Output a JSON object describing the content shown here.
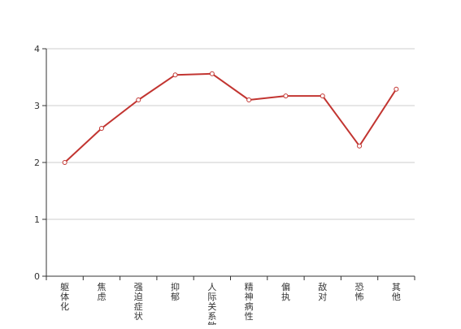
{
  "chart_data": {
    "type": "line",
    "title": "",
    "xlabel": "",
    "ylabel": "",
    "categories": [
      "躯体化",
      "焦虑",
      "强迫症状",
      "抑郁",
      "人际关系敏感",
      "精神病性",
      "偏执",
      "敌对",
      "恐怖",
      "其他"
    ],
    "series": [
      {
        "values": [
          2.0,
          2.6,
          3.1,
          3.54,
          3.56,
          3.1,
          3.17,
          3.17,
          2.29,
          3.29
        ]
      }
    ],
    "ylim": [
      0,
      4
    ],
    "yticks": [
      0,
      1,
      2,
      3,
      4
    ],
    "grid": true,
    "legend": "none",
    "colors": {
      "line": "#c23531",
      "grid": "#cccccc",
      "axis": "#333333",
      "text": "#333333"
    }
  }
}
